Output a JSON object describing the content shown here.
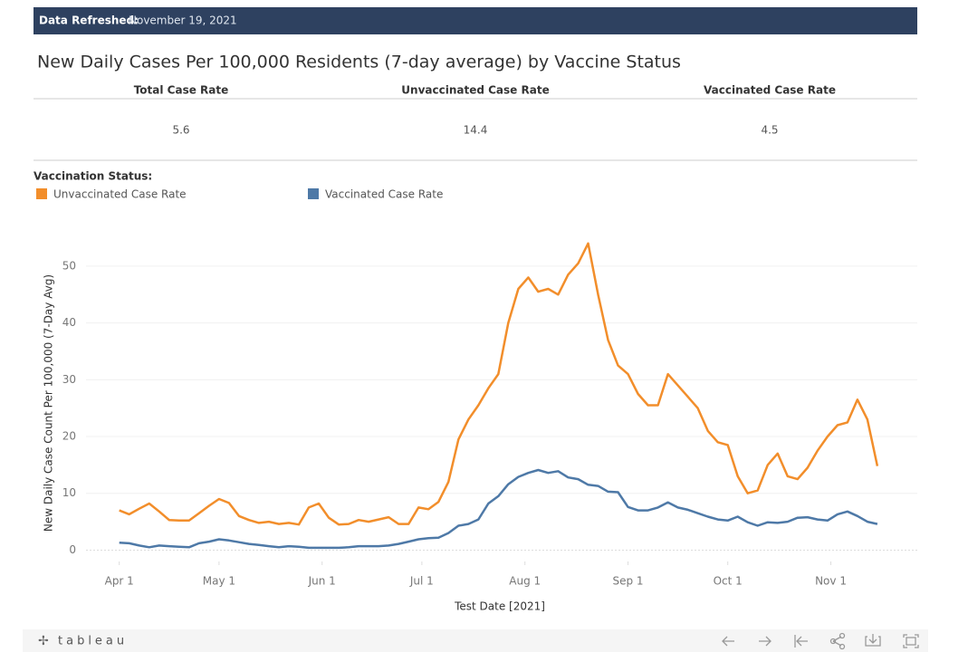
{
  "header": {
    "label": "Data Refreshed:",
    "date": "November 19, 2021"
  },
  "title": "New Daily Cases Per 100,000 Residents (7-day average) by Vaccine Status",
  "kpis": [
    {
      "label": "Total Case Rate",
      "value": 5.6
    },
    {
      "label": "Unvaccinated Case Rate",
      "value": 14.4
    },
    {
      "label": "Vaccinated Case Rate",
      "value": 4.5
    }
  ],
  "footer": {
    "logo": "tableau"
  },
  "chart_data": {
    "type": "line",
    "legend_title": "Vaccination Status:",
    "x_label": "Test Date [2021]",
    "y_label": "New Daily Case Count Per 100,000 (7-Day Avg)",
    "xlim": [
      "2021-03-22",
      "2021-11-27"
    ],
    "xticks": [
      {
        "value": "2021-04-01",
        "label": "Apr 1"
      },
      {
        "value": "2021-05-01",
        "label": "May 1"
      },
      {
        "value": "2021-06-01",
        "label": "Jun 1"
      },
      {
        "value": "2021-07-01",
        "label": "Jul 1"
      },
      {
        "value": "2021-08-01",
        "label": "Aug 1"
      },
      {
        "value": "2021-09-01",
        "label": "Sep 1"
      },
      {
        "value": "2021-10-01",
        "label": "Oct 1"
      },
      {
        "value": "2021-11-01",
        "label": "Nov 1"
      }
    ],
    "ylim": [
      -2,
      57
    ],
    "yticks": [
      0,
      10,
      20,
      30,
      40,
      50
    ],
    "grid": true,
    "x": [
      "2021-04-01",
      "2021-04-04",
      "2021-04-07",
      "2021-04-10",
      "2021-04-13",
      "2021-04-16",
      "2021-04-19",
      "2021-04-22",
      "2021-04-25",
      "2021-04-28",
      "2021-05-01",
      "2021-05-04",
      "2021-05-07",
      "2021-05-10",
      "2021-05-13",
      "2021-05-16",
      "2021-05-19",
      "2021-05-22",
      "2021-05-25",
      "2021-05-28",
      "2021-05-31",
      "2021-06-03",
      "2021-06-06",
      "2021-06-09",
      "2021-06-12",
      "2021-06-15",
      "2021-06-18",
      "2021-06-21",
      "2021-06-24",
      "2021-06-27",
      "2021-06-30",
      "2021-07-03",
      "2021-07-06",
      "2021-07-09",
      "2021-07-12",
      "2021-07-15",
      "2021-07-18",
      "2021-07-21",
      "2021-07-24",
      "2021-07-27",
      "2021-07-30",
      "2021-08-02",
      "2021-08-05",
      "2021-08-08",
      "2021-08-11",
      "2021-08-14",
      "2021-08-17",
      "2021-08-20",
      "2021-08-23",
      "2021-08-26",
      "2021-08-29",
      "2021-09-01",
      "2021-09-04",
      "2021-09-07",
      "2021-09-10",
      "2021-09-13",
      "2021-09-16",
      "2021-09-19",
      "2021-09-22",
      "2021-09-25",
      "2021-09-28",
      "2021-10-01",
      "2021-10-04",
      "2021-10-07",
      "2021-10-10",
      "2021-10-13",
      "2021-10-16",
      "2021-10-19",
      "2021-10-22",
      "2021-10-25",
      "2021-10-28",
      "2021-10-31",
      "2021-11-03",
      "2021-11-06",
      "2021-11-09",
      "2021-11-12",
      "2021-11-15"
    ],
    "series": [
      {
        "name": "Unvaccinated Case Rate",
        "color": "#f28e2b",
        "values": [
          7,
          6.3,
          7.3,
          8.2,
          6.8,
          5.3,
          5.2,
          5.2,
          6.5,
          7.8,
          9,
          8.3,
          6,
          5.3,
          4.8,
          5,
          4.6,
          4.8,
          4.5,
          7.5,
          8.2,
          5.7,
          4.5,
          4.6,
          5.3,
          5,
          5.4,
          5.8,
          4.6,
          4.6,
          7.5,
          7.2,
          8.5,
          12,
          19.5,
          23,
          25.5,
          28.5,
          31,
          40,
          46,
          48,
          45.5,
          46,
          45,
          48.5,
          50.5,
          54,
          45,
          37,
          32.5,
          31,
          27.5,
          25.5,
          25.5,
          31,
          29,
          27,
          25,
          21,
          19,
          18.5,
          13,
          10,
          10.5,
          15,
          17,
          13,
          12.5,
          14.5,
          17.5,
          20,
          22,
          22.5,
          26.5,
          23,
          14.8
        ]
      },
      {
        "name": "Vaccinated Case Rate",
        "color": "#4e79a7",
        "values": [
          1.3,
          1.2,
          0.8,
          0.5,
          0.8,
          0.7,
          0.6,
          0.5,
          1.2,
          1.5,
          1.9,
          1.7,
          1.4,
          1.1,
          0.9,
          0.7,
          0.5,
          0.7,
          0.6,
          0.4,
          0.4,
          0.4,
          0.4,
          0.5,
          0.7,
          0.7,
          0.7,
          0.8,
          1.1,
          1.5,
          1.9,
          2.1,
          2.2,
          3,
          4.3,
          4.6,
          5.4,
          8.2,
          9.5,
          11.6,
          12.9,
          13.6,
          14.1,
          13.6,
          13.9,
          12.8,
          12.5,
          11.5,
          11.3,
          10.3,
          10.2,
          7.6,
          7,
          7,
          7.5,
          8.4,
          7.5,
          7.1,
          6.5,
          5.9,
          5.4,
          5.2,
          5.9,
          4.9,
          4.3,
          4.9,
          4.8,
          5,
          5.7,
          5.8,
          5.4,
          5.2,
          6.3,
          6.8,
          6,
          5,
          4.6
        ]
      }
    ]
  }
}
